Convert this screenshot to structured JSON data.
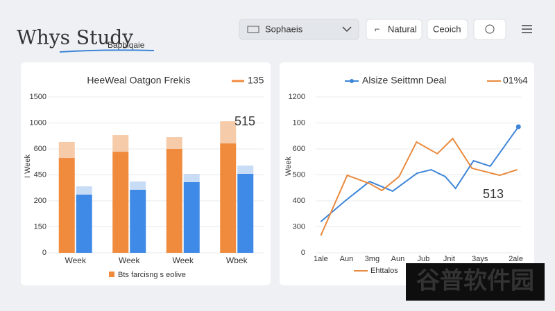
{
  "header": {
    "title": "Whys Study",
    "subtitle": "Baphiqaie",
    "dropdown": "Sophaeis",
    "buttons": [
      "Natural",
      "Ceoich"
    ],
    "watermark": "谷普软件园"
  },
  "chart_data": [
    {
      "type": "bar",
      "title": "HeeWeal Oatgon Frekis",
      "legend_note": "135",
      "ylabel": "I Week",
      "annotation": "515",
      "categories": [
        "Week",
        "Week",
        "Week",
        "Wbek"
      ],
      "ylim": [
        0,
        1500
      ],
      "yticks": [
        0,
        {
          "value": 250,
          "label": "150"
        },
        {
          "value": 500,
          "label": "200"
        },
        {
          "value": 750,
          "label": "450"
        },
        {
          "value": 1000,
          "label": "600"
        },
        {
          "value": 1250,
          "label": "1000"
        },
        1500
      ],
      "series": [
        {
          "name": "Bts farcisng s eolive",
          "color": "#f08a3c",
          "stack": "a",
          "values": [
            913,
            973,
            1000,
            1053
          ]
        },
        {
          "color": "#f6cba9",
          "stack": "a",
          "values": [
            154,
            160,
            113,
            213
          ]
        },
        {
          "color": "#3f8ae6",
          "stack": "b",
          "values": [
            560,
            607,
            680,
            760
          ]
        },
        {
          "color": "#c9dcf5",
          "stack": "b",
          "values": [
            80,
            80,
            80,
            80
          ]
        }
      ]
    },
    {
      "type": "line",
      "ylabel": "Week",
      "annotation": "513",
      "legend_note": "Ehttalos",
      "xlim": [
        -0.2,
        7.8
      ],
      "xticks": [
        {
          "value": 0,
          "label": "1ale"
        },
        {
          "value": 1,
          "label": "Aun"
        },
        {
          "value": 2,
          "label": "3mg"
        },
        {
          "value": 3,
          "label": "Aun"
        },
        {
          "value": 4,
          "label": "Jub"
        },
        {
          "value": 5,
          "label": "Jnit"
        },
        {
          "value": 6.2,
          "label": "3ays"
        },
        {
          "value": 7.6,
          "label": "2ale"
        }
      ],
      "ylim": [
        0,
        1200
      ],
      "yticks": [
        0,
        {
          "value": 200,
          "label": "300"
        },
        {
          "value": 400,
          "label": "400"
        },
        {
          "value": 600,
          "label": "500"
        },
        {
          "value": 800,
          "label": "600"
        },
        {
          "value": 1000,
          "label": "100"
        },
        1200
      ],
      "series": [
        {
          "name": "Alsize Seittmn Deal",
          "color": "#3d85d8",
          "x": [
            0,
            0.95,
            1.9,
            2.8,
            3.75,
            4.3,
            4.85,
            5.25,
            5.95,
            6.6,
            7.7
          ],
          "values": [
            240,
            400,
            549,
            475,
            613,
            640,
            587,
            496,
            709,
            667,
            971
          ]
        },
        {
          "name": "01%4",
          "color": "#e98a3e",
          "x": [
            0,
            1.03,
            1.9,
            2.38,
            3.05,
            3.73,
            4.54,
            5.14,
            5.89,
            6.97,
            7.65
          ],
          "values": [
            133,
            597,
            533,
            480,
            587,
            853,
            763,
            880,
            651,
            597,
            640
          ]
        }
      ]
    }
  ]
}
